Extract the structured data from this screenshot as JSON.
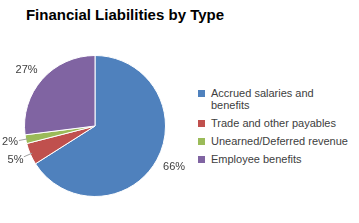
{
  "chart_data": {
    "type": "pie",
    "title": "Financial Liabilities by Type",
    "categories": [
      "Accrued salaries and benefits",
      "Trade and other payables",
      "Unearned/Deferred revenue",
      "Employee benefits"
    ],
    "values": [
      66,
      5,
      2,
      27
    ],
    "value_labels": [
      "66%",
      "5%",
      "2%",
      "27%"
    ],
    "colors": [
      "#4f81bd",
      "#c0504d",
      "#9bbb59",
      "#8064a2"
    ],
    "data_labels": true,
    "legend": "right"
  }
}
